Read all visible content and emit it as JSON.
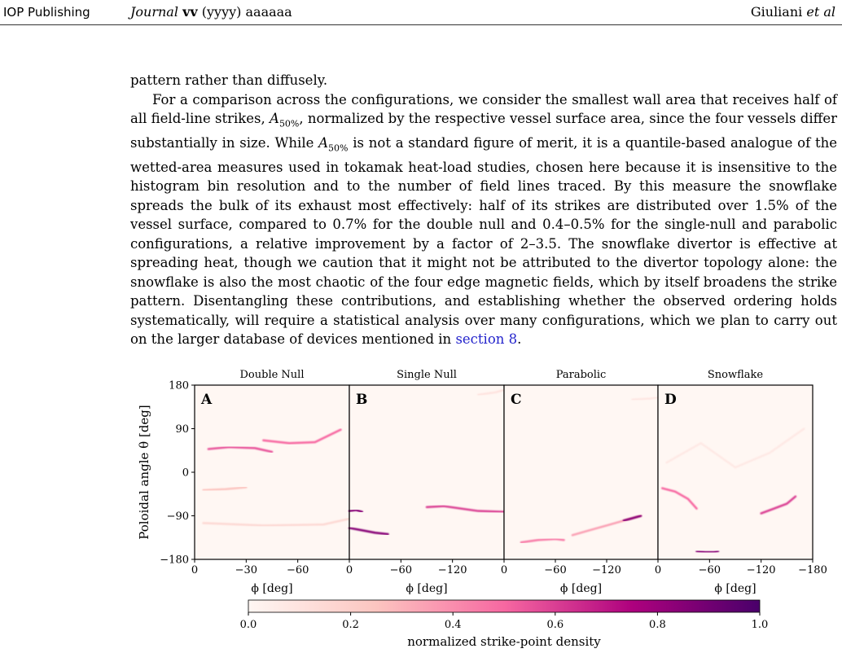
{
  "header": {
    "publisher": "IOP Publishing",
    "journal_name": "Journal",
    "volume": "vv",
    "year": "(yyyy)",
    "article": "aaaaaa",
    "authors_name": "Giuliani",
    "authors_etal": "et al"
  },
  "body": {
    "para1": "pattern rather than diffusely.",
    "para2_a": "For a comparison across the configurations, we consider the smallest wall area that receives half of all field-line strikes, ",
    "sym_A": "A",
    "sym_sub": "50%",
    "para2_b": ", normalized by the respective vessel surface area, since the four vessels differ substantially in size. While ",
    "para2_c": " is not a standard figure of merit, it is a quantile-based analogue of the wetted-area measures used in tokamak heat-load studies, chosen here because it is insensitive to the histogram bin resolution and to the number of field lines traced. By this measure the snowflake spreads the bulk of its exhaust most effectively: half of its strikes are distributed over 1.5% of the vessel surface, compared to 0.7% for the double null and 0.4–0.5% for the single-null and parabolic configurations, a relative improvement by a factor of 2–3.5. The snowflake divertor is effective at spreading heat, though we caution that it might not be attributed to the divertor topology alone: the snowflake is also the most chaotic of the four edge magnetic fields, which by itself broadens the strike pattern. Disentangling these contributions, and establishing whether the observed ordering holds systematically, will require a statistical analysis over many configurations, which we plan to carry out on the larger database of devices mentioned in ",
    "link_text": "section 8",
    "para2_end": "."
  },
  "figure": {
    "ylabel": "Poloidal angle θ [deg]",
    "yticks": [
      "180",
      "90",
      "0",
      "−90",
      "−180"
    ],
    "panels": [
      {
        "title": "Double Null",
        "letter": "A",
        "xticks": [
          "0",
          "−30",
          "−60"
        ],
        "xlabel": "ϕ [deg]"
      },
      {
        "title": "Single Null",
        "letter": "B",
        "xticks": [
          "0",
          "−60",
          "−120"
        ],
        "xlabel": "ϕ [deg]"
      },
      {
        "title": "Parabolic",
        "letter": "C",
        "xticks": [
          "0",
          "−60",
          "−120"
        ],
        "xlabel": "ϕ [deg]"
      },
      {
        "title": "Snowflake",
        "letter": "D",
        "xticks": [
          "0",
          "−60",
          "−120",
          "−180"
        ],
        "xlabel": "ϕ [deg]"
      }
    ],
    "colorbar": {
      "ticks": [
        "0.0",
        "0.2",
        "0.4",
        "0.6",
        "0.8",
        "1.0"
      ],
      "label": "normalized strike-point density",
      "colors": [
        "#fff7f3",
        "#fcc5c0",
        "#f768a1",
        "#ae017e",
        "#49006a"
      ]
    }
  },
  "chart_data": {
    "type": "heatmap",
    "ylabel": "Poloidal angle θ [deg]",
    "ylim": [
      -180,
      180
    ],
    "yticks": [
      180,
      90,
      0,
      -90,
      -180
    ],
    "colorbar": {
      "label": "normalized strike-point density",
      "range": [
        0.0,
        1.0
      ],
      "ticks": [
        0.0,
        0.2,
        0.4,
        0.6,
        0.8,
        1.0
      ]
    },
    "panels": [
      {
        "title": "Double Null",
        "letter": "A",
        "xlabel": "ϕ [deg]",
        "xlim": [
          0,
          -90
        ],
        "xticks": [
          0,
          -30,
          -60
        ],
        "stripes": [
          {
            "phi": [
              -8,
              -20,
              -35,
              -45
            ],
            "theta": [
              48,
              52,
              50,
              42
            ],
            "intensity": 0.55
          },
          {
            "phi": [
              -40,
              -55,
              -70,
              -85
            ],
            "theta": [
              66,
              60,
              62,
              88
            ],
            "intensity": 0.5
          },
          {
            "phi": [
              -5,
              -18,
              -30
            ],
            "theta": [
              -37,
              -35,
              -31
            ],
            "intensity": 0.25
          },
          {
            "phi": [
              -5,
              -40,
              -75,
              -90
            ],
            "theta": [
              -105,
              -110,
              -108,
              -96
            ],
            "intensity": 0.15
          }
        ]
      },
      {
        "title": "Single Null",
        "letter": "B",
        "xlabel": "ϕ [deg]",
        "xlim": [
          0,
          -180
        ],
        "xticks": [
          0,
          -60,
          -120
        ],
        "stripes": [
          {
            "phi": [
              0,
              -8,
              -15
            ],
            "theta": [
              -80,
              -78,
              -82
            ],
            "intensity": 0.85
          },
          {
            "phi": [
              0,
              -15,
              -30,
              -45
            ],
            "theta": [
              -115,
              -120,
              -125,
              -128
            ],
            "intensity": 0.85
          },
          {
            "phi": [
              -90,
              -110,
              -130,
              -150,
              -180
            ],
            "theta": [
              -72,
              -70,
              -75,
              -80,
              -82
            ],
            "intensity": 0.6
          },
          {
            "phi": [
              -150,
              -170,
              -180
            ],
            "theta": [
              160,
              165,
              170
            ],
            "intensity": 0.1
          }
        ]
      },
      {
        "title": "Parabolic",
        "letter": "C",
        "xlabel": "ϕ [deg]",
        "xlim": [
          0,
          -180
        ],
        "xticks": [
          0,
          -60,
          -120
        ],
        "stripes": [
          {
            "phi": [
              -20,
              -40,
              -60,
              -70
            ],
            "theta": [
              -145,
              -140,
              -138,
              -140
            ],
            "intensity": 0.45
          },
          {
            "phi": [
              -80,
              -100,
              -120,
              -140,
              -160
            ],
            "theta": [
              -130,
              -120,
              -110,
              -100,
              -90
            ],
            "intensity": 0.35
          },
          {
            "phi": [
              -140,
              -150,
              -160
            ],
            "theta": [
              -100,
              -95,
              -90
            ],
            "intensity": 0.85
          },
          {
            "phi": [
              -150,
              -170,
              -180
            ],
            "theta": [
              150,
              152,
              155
            ],
            "intensity": 0.08
          }
        ]
      },
      {
        "title": "Snowflake",
        "letter": "D",
        "xlabel": "ϕ [deg]",
        "xlim": [
          0,
          -180
        ],
        "xticks": [
          0,
          -60,
          -120,
          -180
        ],
        "stripes": [
          {
            "phi": [
              -5,
              -20,
              -35,
              -45
            ],
            "theta": [
              -33,
              -40,
              -55,
              -75
            ],
            "intensity": 0.5
          },
          {
            "phi": [
              -120,
              -135,
              -150,
              -160
            ],
            "theta": [
              -85,
              -75,
              -65,
              -50
            ],
            "intensity": 0.6
          },
          {
            "phi": [
              -45,
              -55,
              -65,
              -70
            ],
            "theta": [
              -163,
              -165,
              -165,
              -163
            ],
            "intensity": 0.85
          },
          {
            "phi": [
              -10,
              -50,
              -90,
              -130,
              -170
            ],
            "theta": [
              20,
              60,
              10,
              40,
              90
            ],
            "intensity": 0.07
          }
        ]
      }
    ]
  }
}
